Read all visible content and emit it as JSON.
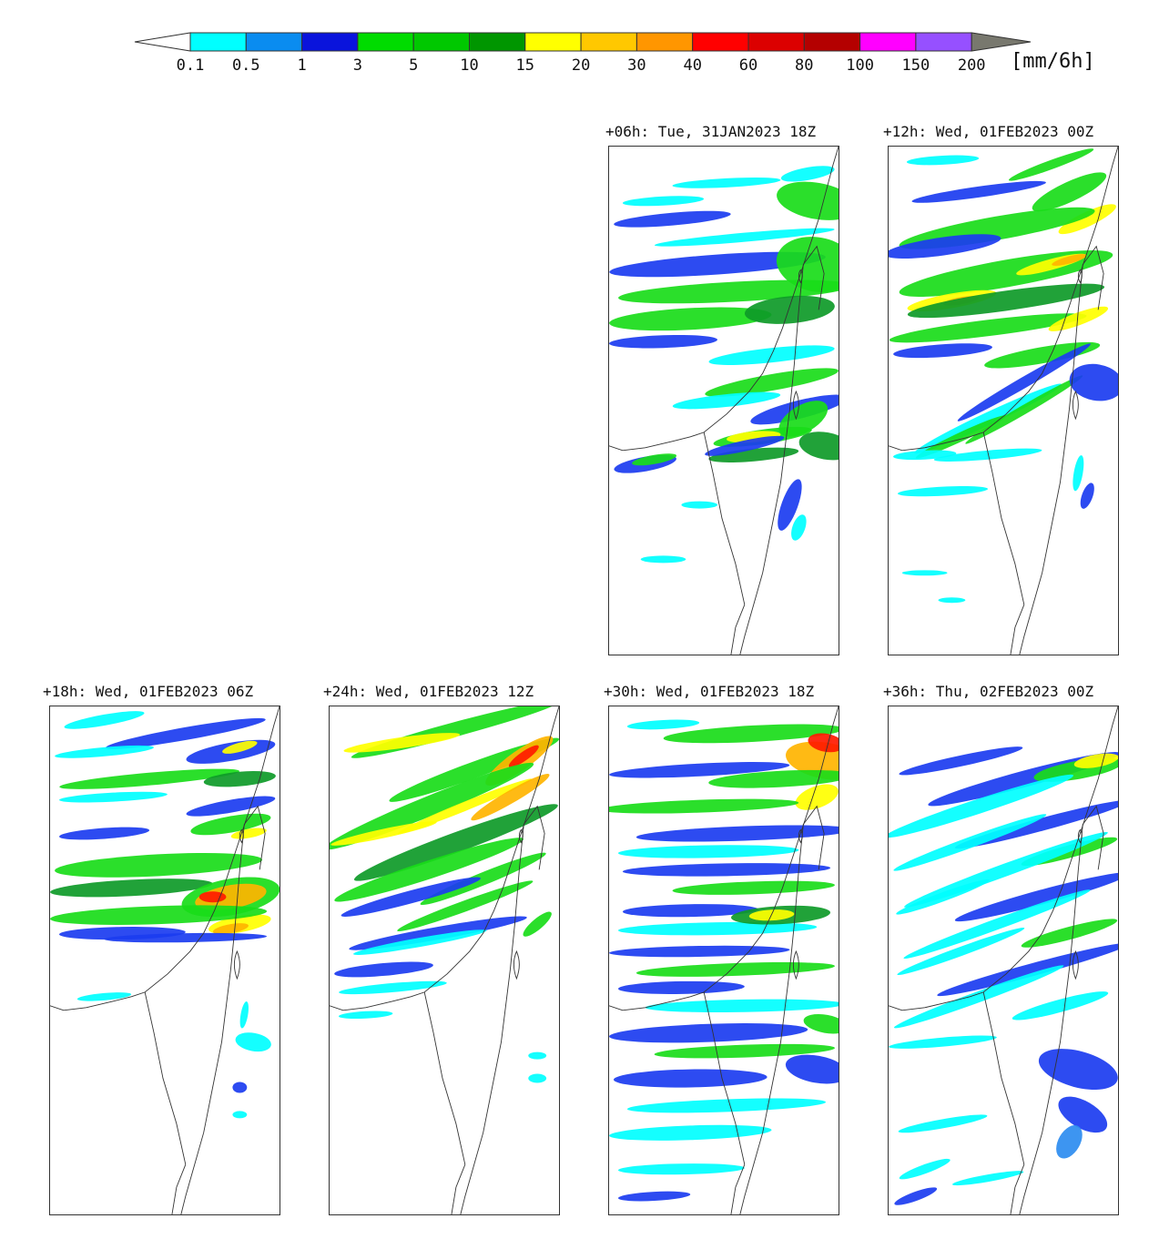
{
  "colorbar": {
    "unit": "[mm/6h]",
    "ticks": [
      "0.1",
      "0.5",
      "1",
      "3",
      "5",
      "10",
      "15",
      "20",
      "30",
      "40",
      "60",
      "80",
      "100",
      "150",
      "200"
    ],
    "colors": [
      "#00ffff",
      "#0a8cf0",
      "#0a14dc",
      "#00dc00",
      "#00c800",
      "#009600",
      "#ffff00",
      "#ffc800",
      "#ff9600",
      "#ff0000",
      "#dc0000",
      "#b40000",
      "#ff00ff",
      "#9650ff",
      "#78786e"
    ]
  },
  "panels": [
    {
      "id": "p06",
      "title": "+06h: Tue, 31JAN2023 18Z"
    },
    {
      "id": "p12",
      "title": "+12h: Wed, 01FEB2023 00Z"
    },
    {
      "id": "p18",
      "title": "+18h: Wed, 01FEB2023 06Z"
    },
    {
      "id": "p24",
      "title": "+24h: Wed, 01FEB2023 12Z"
    },
    {
      "id": "p30",
      "title": "+30h: Wed, 01FEB2023 18Z"
    },
    {
      "id": "p36",
      "title": "+36h: Thu, 02FEB2023 00Z"
    }
  ]
}
